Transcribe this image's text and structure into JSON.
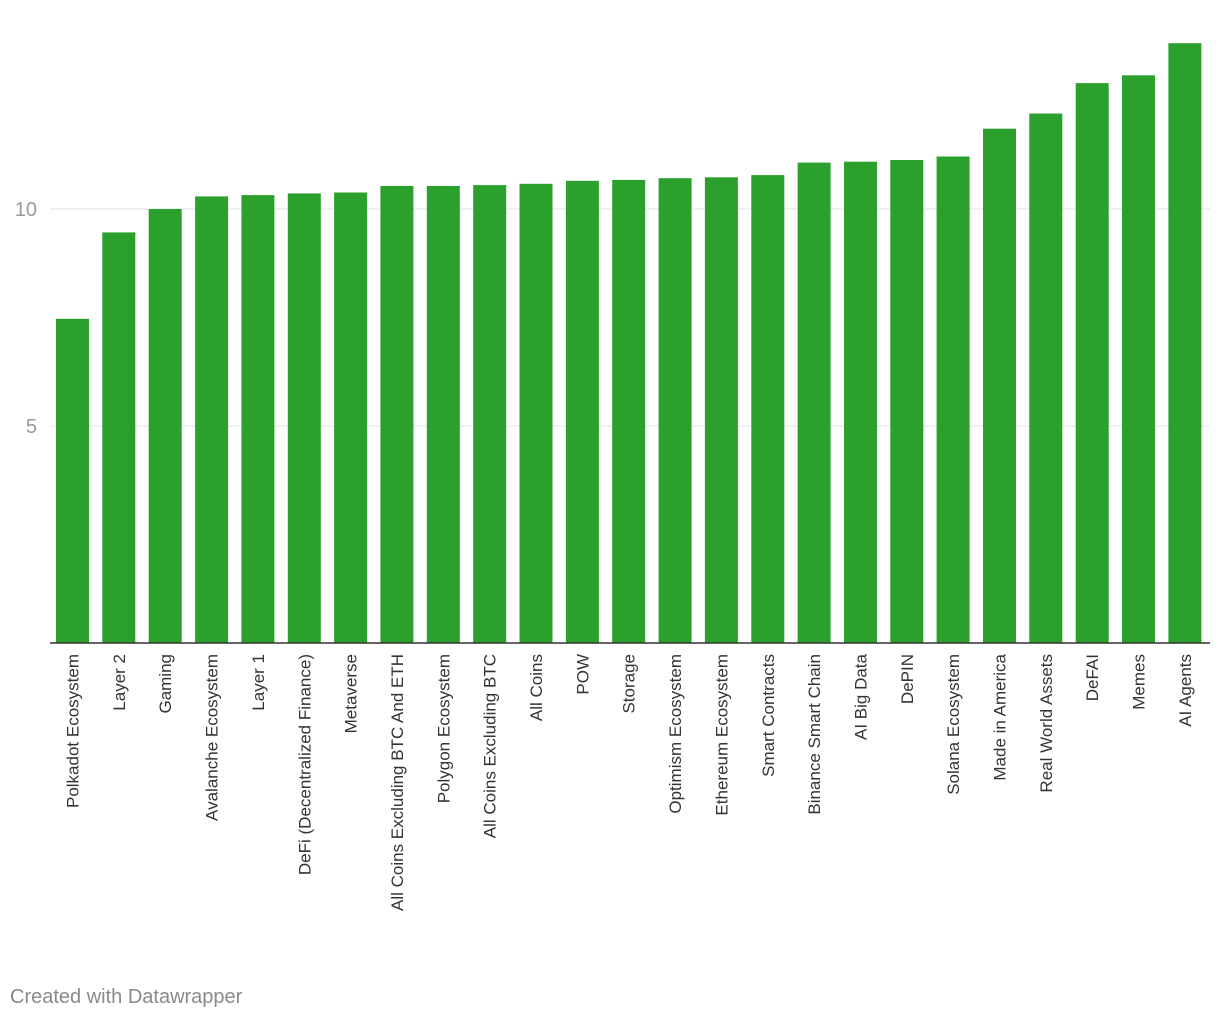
{
  "footer": {
    "credit": "Created with Datawrapper"
  },
  "colors": {
    "bar": "#2ca02c",
    "grid": "#e3e3e3",
    "axis": "#333333"
  },
  "chart_data": {
    "type": "bar",
    "categories": [
      "Polkadot Ecosystem",
      "Layer 2",
      "Gaming",
      "Avalanche Ecosystem",
      "Layer 1",
      "DeFi (Decentralized Finance)",
      "Metaverse",
      "All Coins Excluding BTC And ETH",
      "Polygon Ecosystem",
      "All Coins Excluding BTC",
      "All Coins",
      "POW",
      "Storage",
      "Optimism Ecosystem",
      "Ethereum Ecosystem",
      "Smart Contracts",
      "Binance Smart Chain",
      "AI Big Data",
      "DePIN",
      "Solana Ecosystem",
      "Made in America",
      "Real World Assets",
      "DeFAI",
      "Memes",
      "AI Agents"
    ],
    "values": [
      7.47,
      9.46,
      10.0,
      10.29,
      10.32,
      10.36,
      10.38,
      10.53,
      10.53,
      10.55,
      10.58,
      10.65,
      10.67,
      10.71,
      10.73,
      10.78,
      11.07,
      11.09,
      11.13,
      11.21,
      11.85,
      12.2,
      12.9,
      13.08,
      13.82
    ],
    "yticks": [
      5,
      10
    ],
    "ylim": [
      0,
      14
    ],
    "grid": true,
    "title": "",
    "xlabel": "",
    "ylabel": ""
  }
}
